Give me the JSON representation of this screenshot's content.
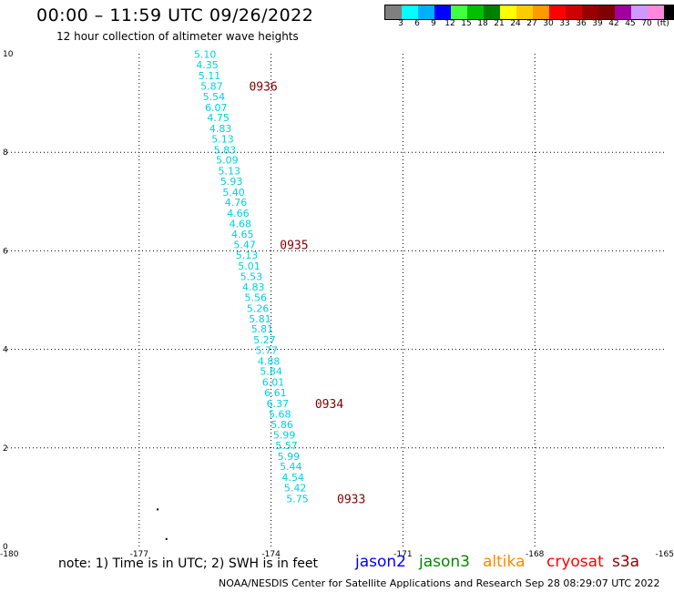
{
  "header": {
    "title": "00:00 – 11:59 UTC 09/26/2022",
    "subtitle": "12 hour collection of altimeter wave heights"
  },
  "legend_scale": {
    "colors": [
      "#7f7f7f",
      "#00ffff",
      "#00b0ff",
      "#0000ff",
      "#40ff40",
      "#00c000",
      "#008000",
      "#ffff00",
      "#ffcc00",
      "#ff9900",
      "#ff0000",
      "#cc0000",
      "#990000",
      "#800000",
      "#a000a0",
      "#cc99ff",
      "#ff88dd",
      "#000000"
    ],
    "labels": [
      "3",
      "6",
      "9",
      "12",
      "15",
      "18",
      "21",
      "24",
      "27",
      "30",
      "33",
      "36",
      "39",
      "42",
      "45",
      "70",
      "(ft)"
    ]
  },
  "chart_data": {
    "type": "scatter",
    "title": "00:00 – 11:59 UTC 09/26/2022",
    "subtitle": "12 hour collection of altimeter wave heights",
    "xlim": [
      -180,
      -165
    ],
    "ylim": [
      0,
      10
    ],
    "x_ticks": [
      "-180",
      "-177",
      "-174",
      "-171",
      "-168",
      "-165"
    ],
    "y_ticks": [
      "0",
      "2",
      "4",
      "6",
      "8",
      "10"
    ],
    "grid": true,
    "series": [
      {
        "name": "jason2",
        "color": "#00d0e0",
        "points": [
          {
            "x": -175.5,
            "y": 9.92,
            "v": "5.10"
          },
          {
            "x": -175.45,
            "y": 9.7,
            "v": "4.35"
          },
          {
            "x": -175.4,
            "y": 9.48,
            "v": "5.11"
          },
          {
            "x": -175.35,
            "y": 9.27,
            "v": "5.87"
          },
          {
            "x": -175.3,
            "y": 9.06,
            "v": "5.54"
          },
          {
            "x": -175.25,
            "y": 8.84,
            "v": "6.07"
          },
          {
            "x": -175.2,
            "y": 8.63,
            "v": "4.75"
          },
          {
            "x": -175.15,
            "y": 8.41,
            "v": "4.83"
          },
          {
            "x": -175.1,
            "y": 8.2,
            "v": "5.13"
          },
          {
            "x": -175.05,
            "y": 7.98,
            "v": "5.83"
          },
          {
            "x": -175.0,
            "y": 7.77,
            "v": "5.09"
          },
          {
            "x": -174.95,
            "y": 7.55,
            "v": "5.13"
          },
          {
            "x": -174.9,
            "y": 7.34,
            "v": "5.93"
          },
          {
            "x": -174.85,
            "y": 7.12,
            "v": "5.40"
          },
          {
            "x": -174.8,
            "y": 6.91,
            "v": "4.76"
          },
          {
            "x": -174.75,
            "y": 6.69,
            "v": "4.66"
          },
          {
            "x": -174.7,
            "y": 6.48,
            "v": "4.68"
          },
          {
            "x": -174.65,
            "y": 6.27,
            "v": "4.65"
          },
          {
            "x": -174.6,
            "y": 6.05,
            "v": "5.47"
          },
          {
            "x": -174.55,
            "y": 5.84,
            "v": "5.13"
          },
          {
            "x": -174.5,
            "y": 5.62,
            "v": "5.01"
          },
          {
            "x": -174.45,
            "y": 5.41,
            "v": "5.53"
          },
          {
            "x": -174.4,
            "y": 5.19,
            "v": "4.83"
          },
          {
            "x": -174.35,
            "y": 4.98,
            "v": "5.56"
          },
          {
            "x": -174.3,
            "y": 4.76,
            "v": "5.26"
          },
          {
            "x": -174.25,
            "y": 4.55,
            "v": "5.81"
          },
          {
            "x": -174.2,
            "y": 4.34,
            "v": "5.81"
          },
          {
            "x": -174.15,
            "y": 4.12,
            "v": "5.27"
          },
          {
            "x": -174.1,
            "y": 3.91,
            "v": "5.77"
          },
          {
            "x": -174.05,
            "y": 3.69,
            "v": "4.88"
          },
          {
            "x": -174.0,
            "y": 3.48,
            "v": "5.84"
          },
          {
            "x": -173.95,
            "y": 3.26,
            "v": "6.01"
          },
          {
            "x": -173.9,
            "y": 3.05,
            "v": "6.61"
          },
          {
            "x": -173.85,
            "y": 2.83,
            "v": "6.37"
          },
          {
            "x": -173.8,
            "y": 2.62,
            "v": "5.68"
          },
          {
            "x": -173.75,
            "y": 2.4,
            "v": "5.86"
          },
          {
            "x": -173.7,
            "y": 2.19,
            "v": "5.99"
          },
          {
            "x": -173.65,
            "y": 1.98,
            "v": "5.57"
          },
          {
            "x": -173.6,
            "y": 1.76,
            "v": "5.99"
          },
          {
            "x": -173.55,
            "y": 1.55,
            "v": "5.44"
          },
          {
            "x": -173.5,
            "y": 1.33,
            "v": "4.54"
          },
          {
            "x": -173.45,
            "y": 1.12,
            "v": "5.42"
          },
          {
            "x": -173.4,
            "y": 0.9,
            "v": "5.75"
          }
        ]
      }
    ],
    "time_annotations": [
      {
        "x": -174.5,
        "y": 9.27,
        "label": "0936"
      },
      {
        "x": -173.8,
        "y": 6.05,
        "label": "0935"
      },
      {
        "x": -173.0,
        "y": 2.83,
        "label": "0934"
      },
      {
        "x": -172.5,
        "y": 0.9,
        "label": "0933"
      }
    ],
    "dots": [
      {
        "x": -176.6,
        "y": 0.77
      },
      {
        "x": -176.4,
        "y": 0.17
      }
    ]
  },
  "footer": {
    "note": "note: 1) Time is in UTC; 2) SWH is in feet",
    "satellites": [
      {
        "name": "jason2",
        "color": "#0000ff"
      },
      {
        "name": "jason3",
        "color": "#008800"
      },
      {
        "name": "altika",
        "color": "#ff8800"
      },
      {
        "name": "cryosat",
        "color": "#ff0000"
      },
      {
        "name": "s3a",
        "color": "#880000"
      }
    ],
    "credit": "NOAA/NESDIS Center for Satellite Applications and Research     Sep 28 08:29:07 UTC 2022"
  }
}
